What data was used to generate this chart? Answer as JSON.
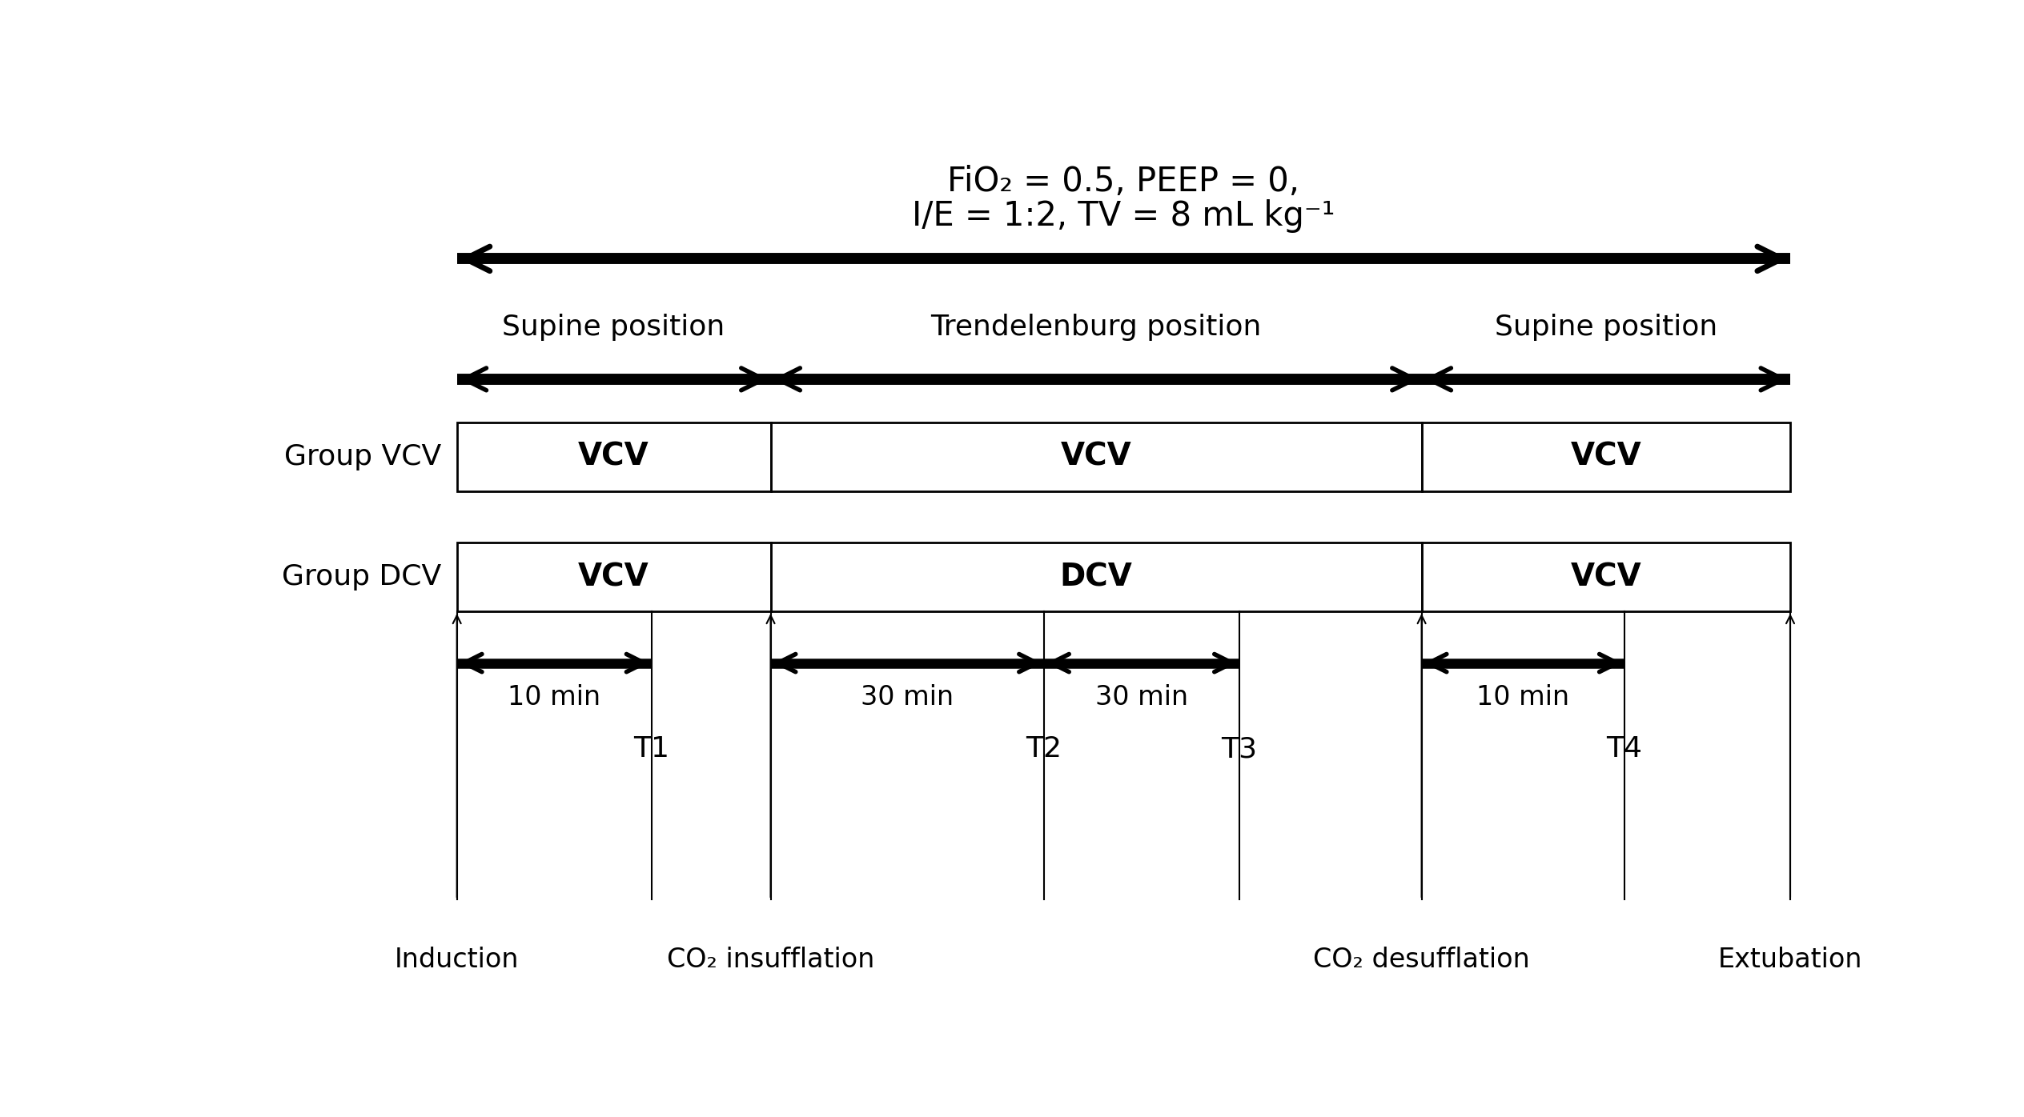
{
  "title_line1": "FiO₂ = 0.5, PEEP = 0,",
  "title_line2": "I/E = 1:2, TV = 8 mL kg⁻¹",
  "bg_color": "#ffffff",
  "text_color": "#000000",
  "xl": 0.13,
  "xr": 0.98,
  "xd1": 0.33,
  "xd2": 0.745,
  "group_vcv_label": "Group VCV",
  "group_dcv_label": "Group DCV",
  "vcv_labels": [
    "VCV",
    "VCV",
    "VCV"
  ],
  "dcv_label": "DCV",
  "position_labels": [
    "Supine position",
    "Trendelenburg position",
    "Supine position"
  ],
  "time_labels": [
    "10 min",
    "30 min",
    "30 min",
    "10 min"
  ],
  "point_labels": [
    "T1",
    "T2",
    "T3",
    "T4"
  ],
  "bottom_labels": [
    "Induction",
    "CO₂ insufflation",
    "CO₂ desufflation",
    "Extubation"
  ],
  "arrow_lw": 12,
  "arrow_hw": 0.022,
  "arrow_hl": 0.022,
  "meas_arrow_lw": 10,
  "meas_arrow_hw": 0.016,
  "meas_arrow_hl": 0.016
}
